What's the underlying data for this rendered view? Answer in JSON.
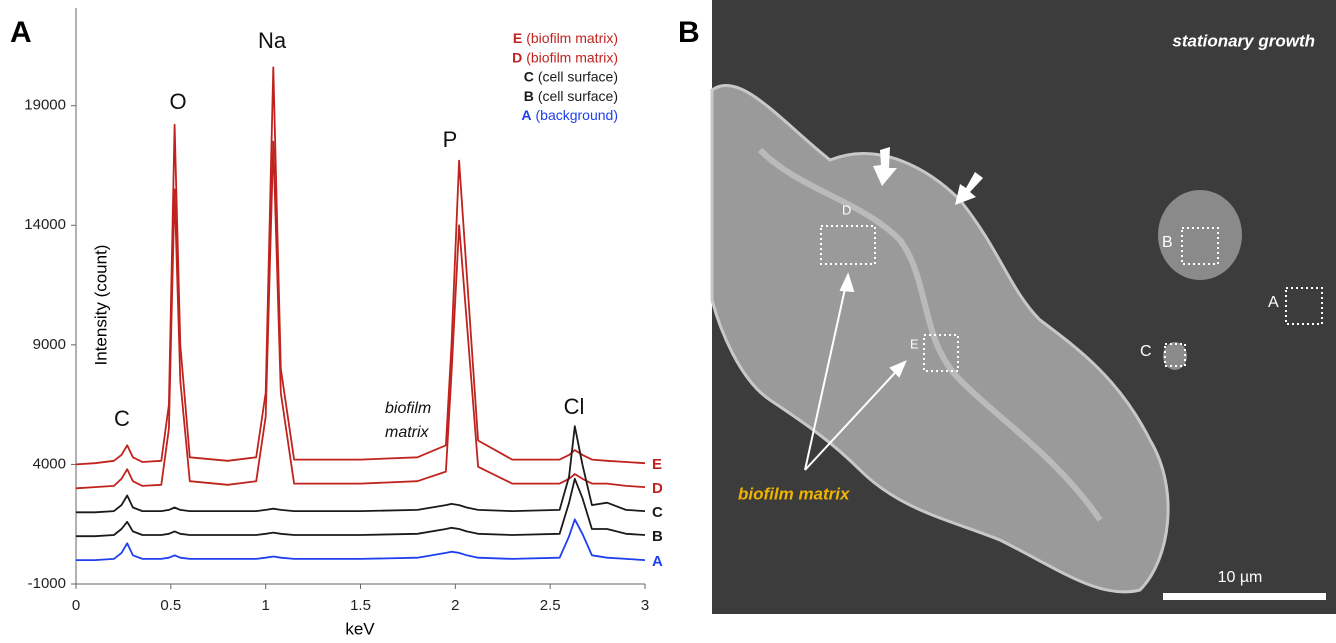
{
  "chart_data": {
    "type": "line",
    "panel_label": "A",
    "xlabel": "keV",
    "ylabel": "Intensity (count)",
    "xlim": [
      0,
      3
    ],
    "xticks": [
      0,
      0.5,
      1,
      1.5,
      2,
      2.5,
      3
    ],
    "ylim": [
      -1000,
      22500
    ],
    "yticks": [
      -1000,
      4000,
      9000,
      14000,
      19000
    ],
    "grid": false,
    "x": [
      0,
      0.1,
      0.2,
      0.24,
      0.27,
      0.3,
      0.35,
      0.45,
      0.49,
      0.52,
      0.55,
      0.6,
      0.8,
      0.95,
      1.0,
      1.04,
      1.08,
      1.15,
      1.5,
      1.8,
      1.95,
      1.98,
      2.02,
      2.06,
      2.12,
      2.3,
      2.55,
      2.6,
      2.63,
      2.67,
      2.72,
      2.8,
      2.9,
      3.0
    ],
    "series": [
      {
        "name": "E",
        "description": "(biofilm matrix)",
        "color": "#c0231e",
        "values": [
          4000,
          4050,
          4150,
          4400,
          4800,
          4300,
          4100,
          4150,
          6500,
          18200,
          9000,
          4300,
          4150,
          4300,
          7000,
          20600,
          8000,
          4200,
          4200,
          4300,
          4800,
          9000,
          16700,
          12000,
          5000,
          4200,
          4200,
          4400,
          4600,
          4400,
          4200,
          4150,
          4100,
          4050
        ]
      },
      {
        "name": "D",
        "description": "(biofilm matrix)",
        "color": "#c0231e",
        "values": [
          3000,
          3050,
          3100,
          3400,
          3800,
          3300,
          3100,
          3150,
          5500,
          15500,
          7500,
          3300,
          3150,
          3300,
          6000,
          17500,
          7000,
          3200,
          3200,
          3300,
          3700,
          7800,
          14000,
          10000,
          3900,
          3200,
          3200,
          3400,
          3600,
          3400,
          3200,
          3200,
          3100,
          3050
        ]
      },
      {
        "name": "C",
        "description": "(cell surface)",
        "color": "#1a1a1a",
        "values": [
          2000,
          2000,
          2050,
          2300,
          2700,
          2200,
          2050,
          2050,
          2100,
          2200,
          2100,
          2050,
          2050,
          2050,
          2100,
          2150,
          2100,
          2050,
          2050,
          2100,
          2300,
          2350,
          2300,
          2200,
          2100,
          2050,
          2100,
          3500,
          5600,
          4000,
          2300,
          2400,
          2100,
          2050
        ]
      },
      {
        "name": "B",
        "description": "(cell surface)",
        "color": "#1a1a1a",
        "values": [
          1000,
          1000,
          1050,
          1300,
          1600,
          1200,
          1050,
          1050,
          1100,
          1200,
          1100,
          1050,
          1050,
          1050,
          1100,
          1150,
          1100,
          1050,
          1050,
          1100,
          1300,
          1350,
          1300,
          1200,
          1100,
          1050,
          1100,
          2400,
          3400,
          2600,
          1300,
          1300,
          1100,
          1050
        ]
      },
      {
        "name": "A",
        "description": "(background)",
        "color": "#1f3ff0",
        "values": [
          0,
          0,
          50,
          300,
          700,
          200,
          50,
          50,
          100,
          200,
          100,
          50,
          50,
          50,
          100,
          150,
          100,
          50,
          50,
          100,
          300,
          350,
          300,
          200,
          100,
          50,
          100,
          1000,
          1700,
          1100,
          200,
          100,
          50,
          0
        ]
      }
    ],
    "annotations": [
      "C",
      "O",
      "Na",
      "P",
      "Cl"
    ],
    "region_label": [
      "biofilm",
      "matrix"
    ]
  },
  "panel_b": {
    "panel_label": "B",
    "condition": "stationary growth",
    "region_label": "biofilm matrix",
    "scale_bar": "10 µm",
    "box_labels": [
      "A",
      "B",
      "C",
      "D",
      "E"
    ]
  }
}
